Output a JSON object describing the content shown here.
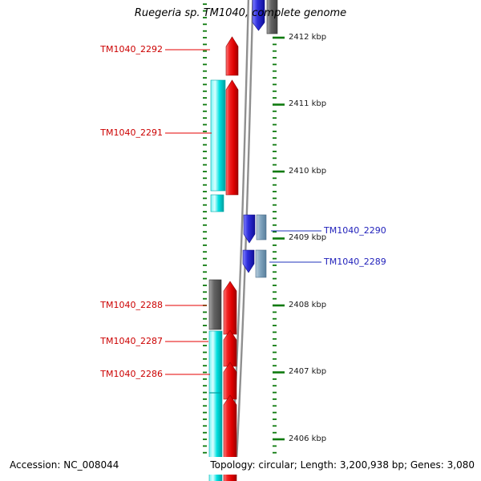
{
  "title": "Ruegeria sp. TM1040, complete genome",
  "ruler": {
    "units": [
      {
        "label": "2412 kbp"
      },
      {
        "label": "2411 kbp"
      },
      {
        "label": "2410 kbp"
      },
      {
        "label": "2409 kbp"
      },
      {
        "label": "2408 kbp"
      },
      {
        "label": "2407 kbp"
      },
      {
        "label": "2406 kbp"
      }
    ]
  },
  "genes_left": [
    {
      "label": "TM1040_2292"
    },
    {
      "label": "TM1040_2291"
    },
    {
      "label": "TM1040_2288"
    },
    {
      "label": "TM1040_2287"
    },
    {
      "label": "TM1040_2286"
    }
  ],
  "genes_right": [
    {
      "label": "TM1040_2290"
    },
    {
      "label": "TM1040_2289"
    }
  ],
  "footer": {
    "accession": "Accession: NC_008044",
    "topology": "Topology: circular; Length: 3,200,938 bp; Genes: 3,080"
  },
  "colors": {
    "gene_red": "#e60000",
    "gene_cyan": "#00dede",
    "gene_blue": "#2020cc",
    "gene_steel": "#7fa3bd",
    "gene_gray": "#686868",
    "tick_green": "#0e7a0e",
    "axis_gray": "#8f8f8f",
    "label_red": "#cc0000",
    "label_blue": "#2222bb"
  }
}
